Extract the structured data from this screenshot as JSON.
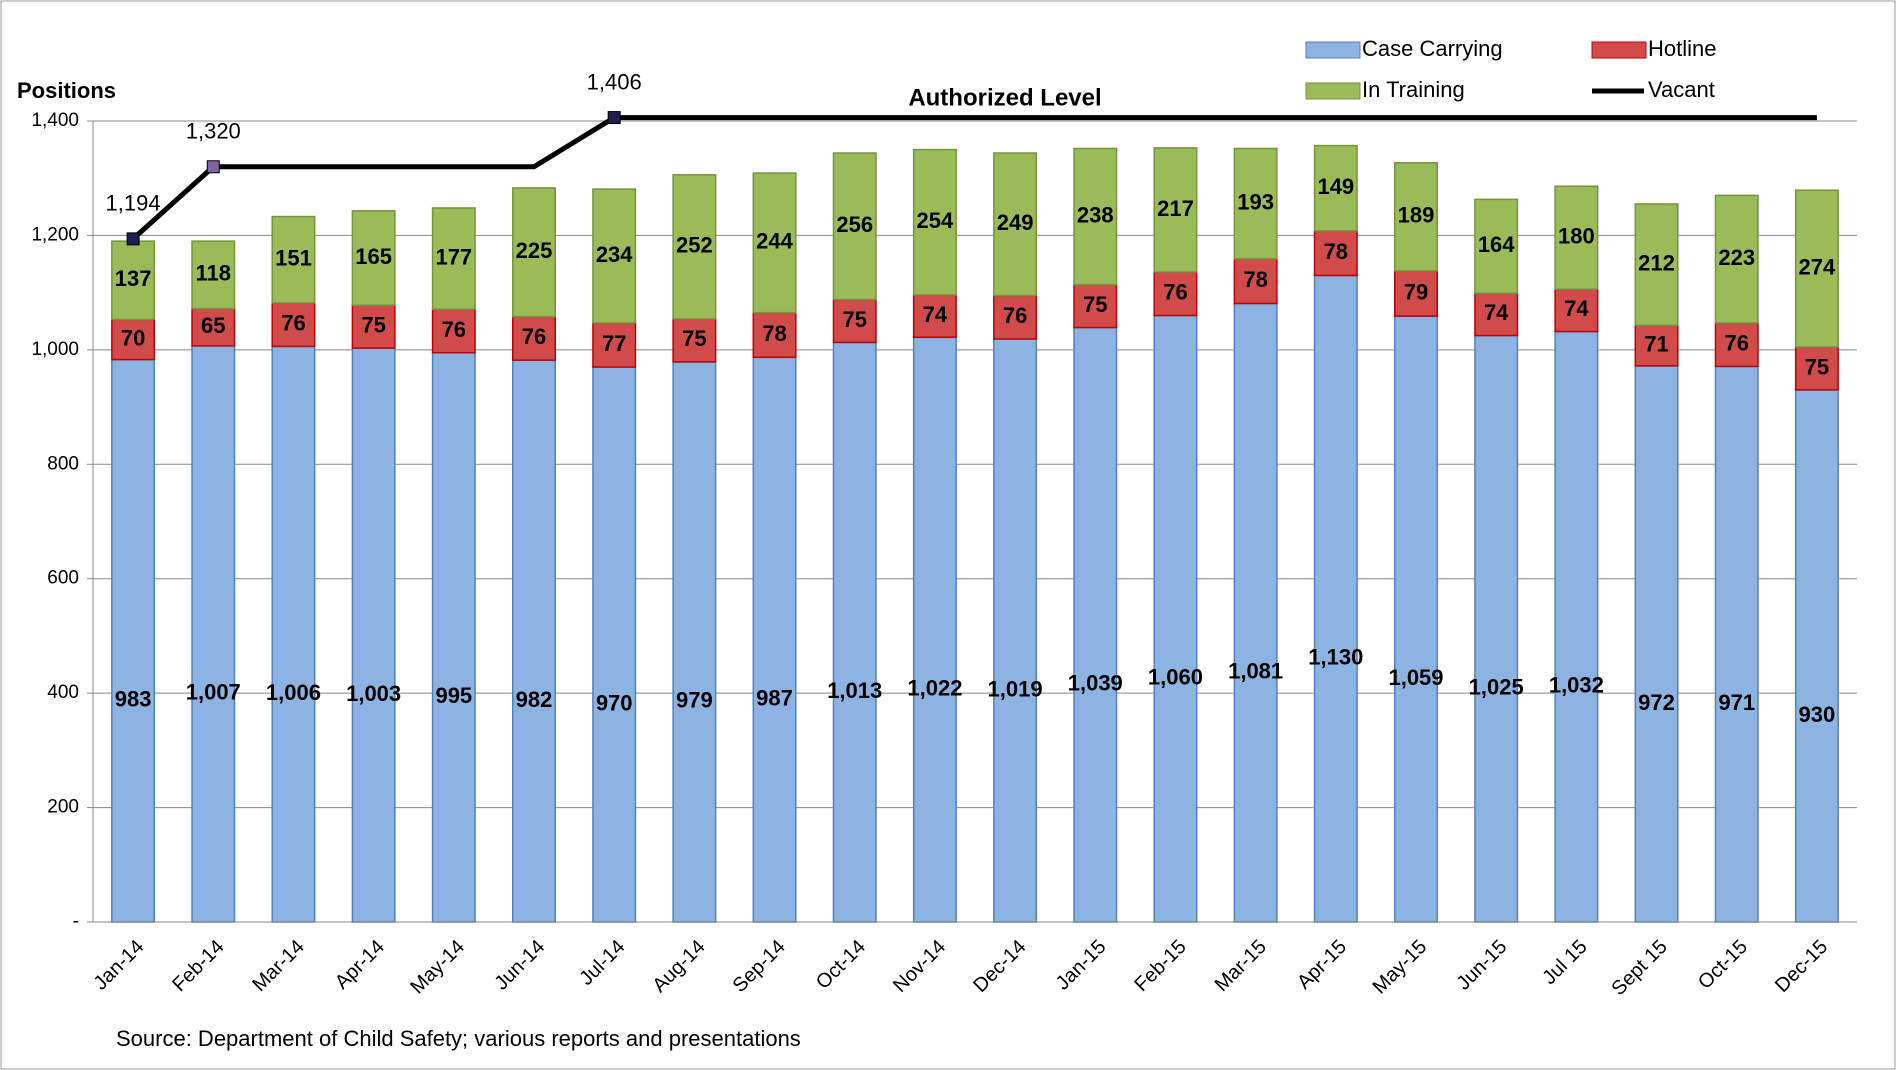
{
  "chart_data": {
    "type": "bar",
    "stacked": true,
    "annotations": [
      "Positions",
      "Authorized Level",
      "Source:  Department of Child Safety; various reports and presentations"
    ],
    "categories": [
      "Jan-14",
      "Feb-14",
      "Mar-14",
      "Apr-14",
      "May-14",
      "Jun-14",
      "Jul-14",
      "Aug-14",
      "Sep-14",
      "Oct-14",
      "Nov-14",
      "Dec-14",
      "Jan-15",
      "Feb-15",
      "Mar-15",
      "Apr-15",
      "May-15",
      "Jun-15",
      "Jul 15",
      "Sept 15",
      "Oct-15",
      "Dec-15"
    ],
    "series": [
      {
        "name": "Case Carrying",
        "color": "#8db3e2",
        "values": [
          983,
          1007,
          1006,
          1003,
          995,
          982,
          970,
          979,
          987,
          1013,
          1022,
          1019,
          1039,
          1060,
          1081,
          1130,
          1059,
          1025,
          1032,
          972,
          971,
          930
        ],
        "value_labels": [
          "983",
          "1,007",
          "1,006",
          "1,003",
          "995",
          "982",
          "970",
          "979",
          "987",
          "1,013",
          "1,022",
          "1,019",
          "1,039",
          "1,060",
          "1,081",
          "1,130",
          "1,059",
          "1,025",
          "1,032",
          "972",
          "971",
          "930"
        ]
      },
      {
        "name": "Hotline",
        "color": "#d24b4b",
        "values": [
          70,
          65,
          76,
          75,
          76,
          76,
          77,
          75,
          78,
          75,
          74,
          76,
          75,
          76,
          78,
          78,
          79,
          74,
          74,
          71,
          76,
          75
        ]
      },
      {
        "name": "In Training",
        "color": "#9bbb59",
        "values": [
          137,
          118,
          151,
          165,
          177,
          225,
          234,
          252,
          244,
          256,
          254,
          249,
          238,
          217,
          193,
          149,
          189,
          164,
          180,
          212,
          223,
          274
        ]
      },
      {
        "name": "Vacant",
        "type": "line",
        "color": "#000000",
        "values": [
          1194,
          1320,
          1320,
          1320,
          1320,
          1320,
          1406,
          1406,
          1406,
          1406,
          1406,
          1406,
          1406,
          1406,
          1406,
          1406,
          1406,
          1406,
          1406,
          1406,
          1406,
          1406
        ],
        "value_labels": [
          "1,194",
          "1,320",
          null,
          null,
          null,
          null,
          "1,406",
          null,
          null,
          null,
          null,
          null,
          null,
          null,
          null,
          null,
          null,
          null,
          null,
          null,
          null,
          null
        ]
      }
    ],
    "ylim": [
      0,
      1400
    ],
    "yticks": [
      {
        "value": 0,
        "label": "-"
      },
      200,
      400,
      600,
      800,
      {
        "value": 1000,
        "label": "1,000"
      },
      {
        "value": 1200,
        "label": "1,200"
      },
      {
        "value": 1400,
        "label": "1,400"
      }
    ],
    "grid": true
  }
}
